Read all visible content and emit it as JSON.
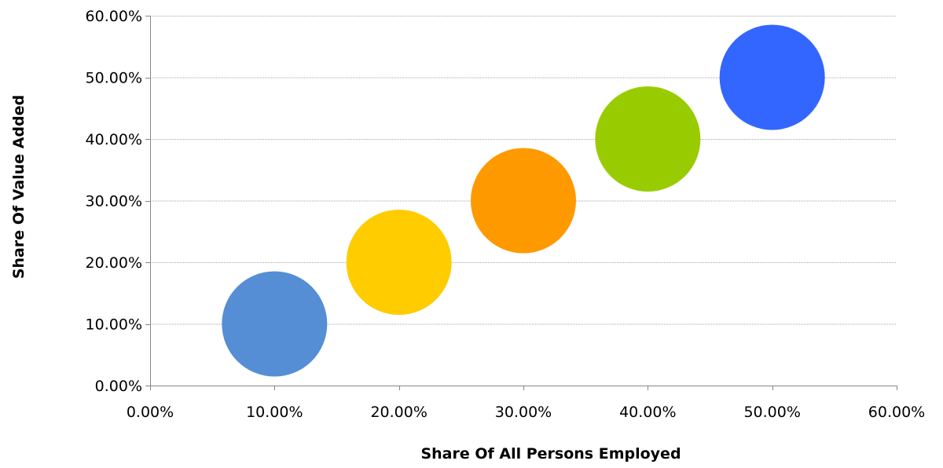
{
  "chart_data": {
    "type": "bubble",
    "xlabel": "Share Of All Persons Employed",
    "ylabel": "Share Of Value Added",
    "xlim": [
      0,
      60
    ],
    "ylim": [
      0,
      60
    ],
    "x_ticks": [
      "0.00%",
      "10.00%",
      "20.00%",
      "30.00%",
      "40.00%",
      "50.00%",
      "60.00%"
    ],
    "y_ticks": [
      "0.00%",
      "10.00%",
      "20.00%",
      "30.00%",
      "40.00%",
      "50.00%",
      "60.00%"
    ],
    "tick_values": [
      0,
      10,
      20,
      30,
      40,
      50,
      60
    ],
    "grid": "horizontal",
    "legend": "none",
    "points": [
      {
        "x": 10,
        "y": 10,
        "color": "#558ed5"
      },
      {
        "x": 20,
        "y": 20,
        "color": "#ffcc00"
      },
      {
        "x": 30,
        "y": 30,
        "color": "#ff9900"
      },
      {
        "x": 40,
        "y": 40,
        "color": "#99cc00"
      },
      {
        "x": 50,
        "y": 50,
        "color": "#3366ff"
      }
    ]
  }
}
